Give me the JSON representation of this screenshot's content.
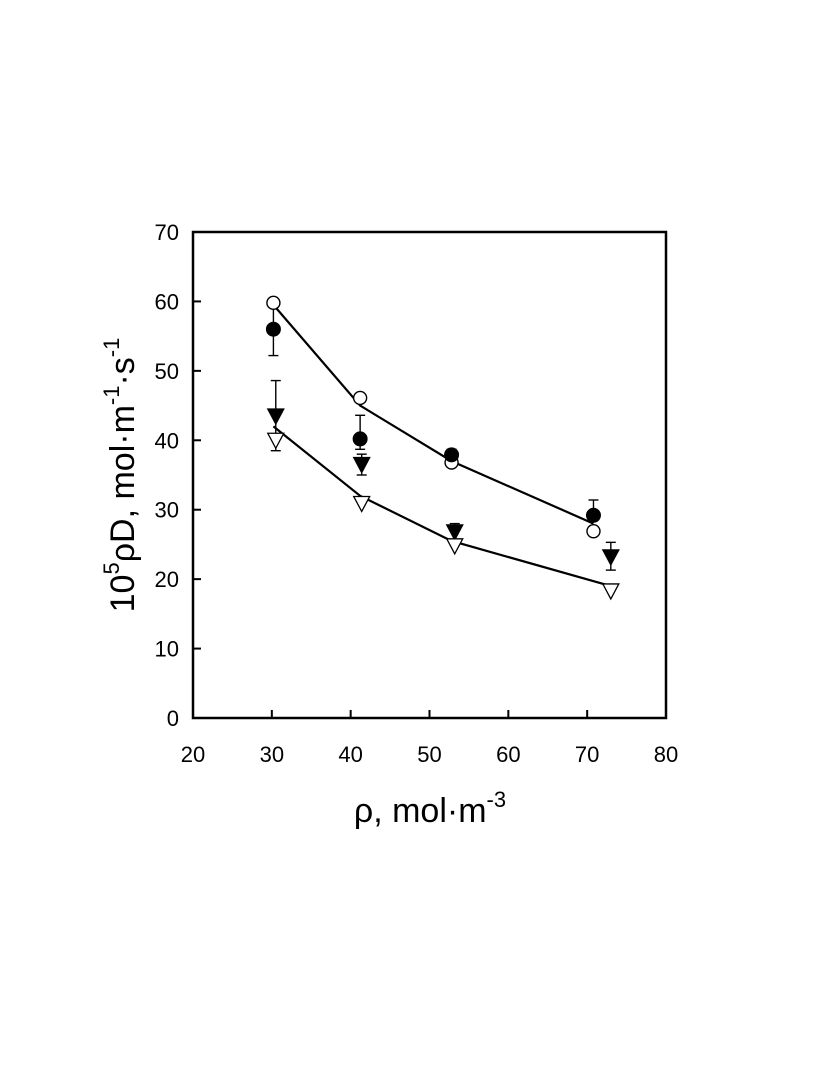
{
  "chart_data": {
    "type": "scatter",
    "title": "",
    "xlabel": {
      "base": "ρ, mol·m",
      "sup": "-3"
    },
    "ylabel": {
      "pre": "10",
      "sup1": "5",
      "mid": "ρD,  mol·m",
      "sup2": "-1",
      "mid2": "·s",
      "sup3": "-1"
    },
    "xlim": [
      20,
      80
    ],
    "ylim": [
      0,
      70
    ],
    "xticks": [
      20,
      30,
      40,
      50,
      60,
      70,
      80
    ],
    "yticks": [
      0,
      10,
      20,
      30,
      40,
      50,
      60,
      70
    ],
    "grid": false,
    "series": [
      {
        "marker": "open-circle",
        "x": [
          30.2,
          41.2,
          52.8,
          70.8
        ],
        "y": [
          59.8,
          46.1,
          36.8,
          26.9
        ]
      },
      {
        "marker": "filled-circle",
        "x": [
          30.2,
          41.2,
          52.8,
          70.8
        ],
        "y": [
          56.0,
          40.2,
          37.9,
          29.2
        ],
        "err_upper": [
          3.3,
          3.4,
          0.8,
          2.2
        ],
        "err_lower": [
          3.8,
          1.5,
          0,
          0
        ]
      },
      {
        "marker": "filled-triangle-down",
        "x": [
          30.5,
          41.4,
          53.2,
          73.0
        ],
        "y": [
          43.5,
          36.5,
          26.8,
          23.2
        ],
        "err_upper": [
          5.1,
          1.5,
          1.2,
          2.1
        ],
        "err_lower": [
          5.0,
          1.5,
          0,
          1.9
        ]
      },
      {
        "marker": "open-triangle-down",
        "x": [
          30.5,
          41.4,
          53.2,
          73.0
        ],
        "y": [
          40.0,
          30.9,
          24.8,
          18.3
        ]
      }
    ],
    "lines": [
      {
        "x": [
          30.2,
          41.2,
          52.8,
          70.8
        ],
        "y": [
          59.5,
          45.0,
          37.0,
          28.0
        ]
      },
      {
        "x": [
          30.2,
          41.2,
          52.8,
          73.0
        ],
        "y": [
          42.0,
          32.0,
          25.5,
          19.0
        ]
      }
    ]
  }
}
